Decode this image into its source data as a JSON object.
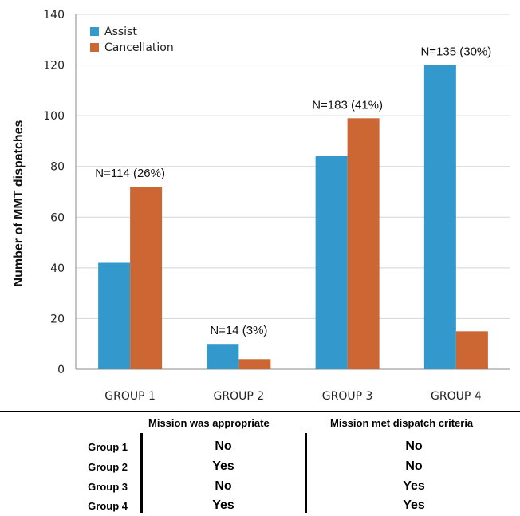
{
  "chart_data": {
    "type": "bar",
    "categories": [
      "GROUP 1",
      "GROUP 2",
      "GROUP 3",
      "GROUP 4"
    ],
    "series": [
      {
        "name": "Assist",
        "values": [
          42,
          10,
          84,
          120
        ],
        "color": "#3399cc"
      },
      {
        "name": "Cancellation",
        "values": [
          72,
          4,
          99,
          15
        ],
        "color": "#cc6633"
      }
    ],
    "annotations": [
      "N=114 (26%)",
      "N=14 (3%)",
      "N=183 (41%)",
      "N=135 (30%)"
    ],
    "ylabel": "Number of MMT dispatches",
    "ylim": [
      0,
      140
    ],
    "yticks": [
      0,
      20,
      40,
      60,
      80,
      100,
      120,
      140
    ],
    "grid": true,
    "legend_position": "top-left"
  },
  "table": {
    "headers": [
      "Mission was appropriate",
      "Mission met dispatch criteria"
    ],
    "rows": [
      {
        "label": "Group 1",
        "appropriate": "No",
        "criteria": "No"
      },
      {
        "label": "Group 2",
        "appropriate": "Yes",
        "criteria": "No"
      },
      {
        "label": "Group 3",
        "appropriate": "No",
        "criteria": "Yes"
      },
      {
        "label": "Group 4",
        "appropriate": "Yes",
        "criteria": "Yes"
      }
    ]
  }
}
